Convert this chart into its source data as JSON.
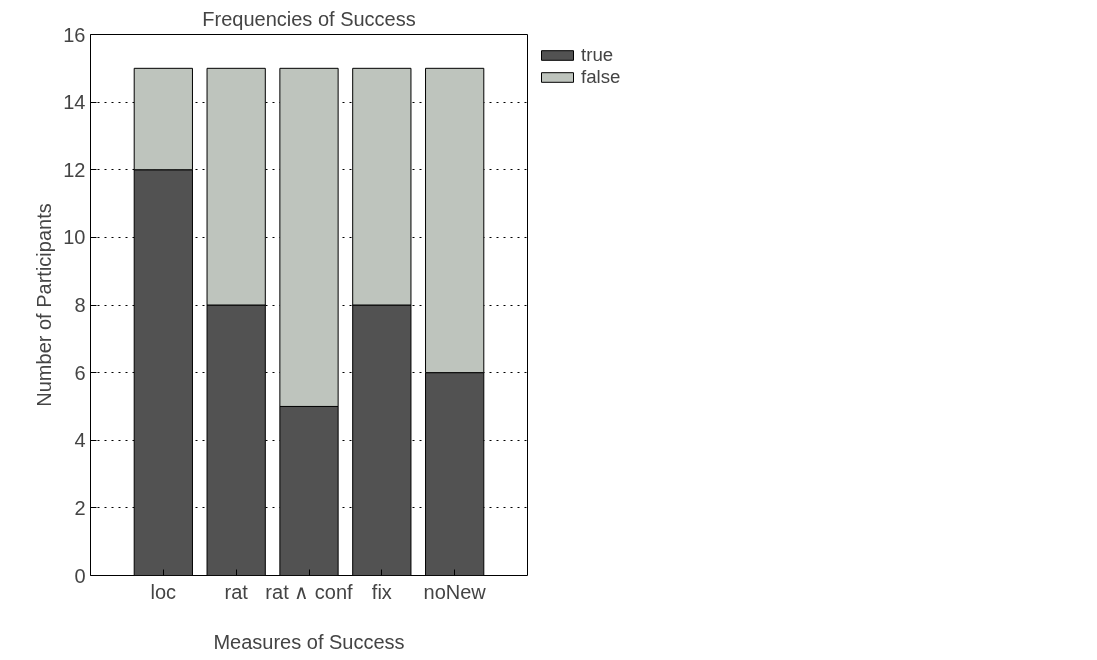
{
  "chart_data": {
    "type": "bar",
    "title": "Frequencies of Success",
    "xlabel": "Measures of Success",
    "ylabel": "Number of Participants",
    "categories": [
      "loc",
      "rat",
      "rat ∧ conf",
      "fix",
      "noNew"
    ],
    "stacked": true,
    "series": [
      {
        "name": "true",
        "color": "#525252",
        "values": [
          12,
          8,
          5,
          8,
          6
        ]
      },
      {
        "name": "false",
        "color": "#bec4bd",
        "values": [
          3,
          7,
          10,
          7,
          9
        ]
      }
    ],
    "ylim": [
      0,
      16
    ],
    "yticks": [
      0,
      2,
      4,
      6,
      8,
      10,
      12,
      14,
      16
    ],
    "grid": "y",
    "legend": "top right"
  }
}
